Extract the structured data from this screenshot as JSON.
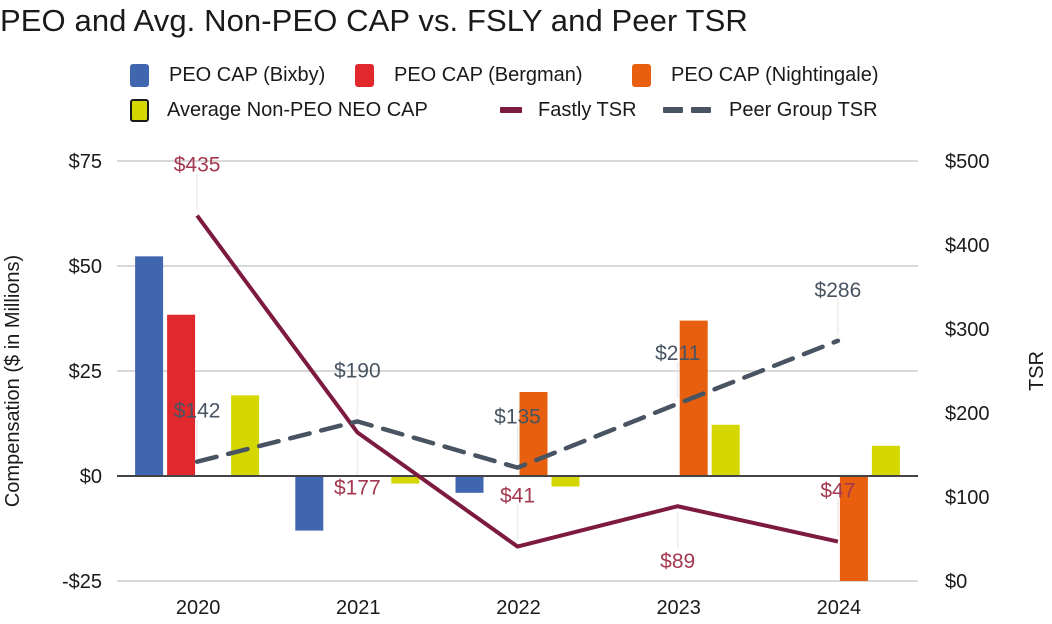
{
  "chart_data": {
    "type": "bar",
    "title": "PEO and Avg. Non-PEO CAP vs. FSLY and Peer TSR",
    "categories": [
      "2020",
      "2021",
      "2022",
      "2023",
      "2024"
    ],
    "ylabel": "Compensation ($ in Millions)",
    "y2label": "TSR",
    "ylim": [
      -25,
      75
    ],
    "y2lim": [
      0,
      500
    ],
    "yticks": [
      "$75",
      "$50",
      "$25",
      "$0",
      "-$25"
    ],
    "ytick_values": [
      75,
      50,
      25,
      0,
      -25
    ],
    "y2ticks": [
      "$500",
      "$400",
      "$300",
      "$200",
      "$100",
      "$0"
    ],
    "y2tick_values": [
      500,
      400,
      300,
      200,
      100,
      0
    ],
    "grid": true,
    "legend_position": "top",
    "bar_series": [
      {
        "name": "PEO CAP (Bixby)",
        "color": "#4166b0",
        "values": [
          52.3,
          -13.0,
          -4.0,
          null,
          null
        ]
      },
      {
        "name": "PEO CAP (Bergman)",
        "color": "#e1282d",
        "values": [
          38.4,
          null,
          null,
          null,
          null
        ]
      },
      {
        "name": "PEO CAP (Nightingale)",
        "color": "#e8600f",
        "values": [
          null,
          null,
          20.0,
          37.0,
          -25.0
        ]
      },
      {
        "name": "Average Non-PEO NEO CAP",
        "color": "#d5d800",
        "outlined_in_legend": true,
        "values": [
          19.2,
          -1.8,
          -2.5,
          12.2,
          7.2
        ]
      }
    ],
    "line_series": [
      {
        "name": "Fastly TSR",
        "color": "#7d1a40",
        "label_color": "#a3384f",
        "style": "solid",
        "axis": "right",
        "values": [
          435,
          177,
          41,
          89,
          47
        ],
        "labels": [
          "$435",
          "$177",
          "$41",
          "$89",
          "$47"
        ],
        "label_side": [
          "above",
          "below",
          "above",
          "below",
          "above"
        ]
      },
      {
        "name": "Peer Group TSR",
        "color": "#485461",
        "label_color": "#485461",
        "style": "dashed",
        "axis": "right",
        "values": [
          142,
          190,
          135,
          211,
          286
        ],
        "labels": [
          "$142",
          "$190",
          "$135",
          "$211",
          "$286"
        ],
        "label_side": [
          "above",
          "above",
          "above",
          "above",
          "above"
        ]
      }
    ]
  },
  "legend": {
    "items": [
      {
        "label": "PEO CAP (Bixby)",
        "kind": "box",
        "color": "#4166b0"
      },
      {
        "label": "PEO CAP (Bergman)",
        "kind": "box",
        "color": "#e1282d"
      },
      {
        "label": "PEO CAP (Nightingale)",
        "kind": "box",
        "color": "#e8600f"
      },
      {
        "label": "Average Non-PEO NEO CAP",
        "kind": "box-outlined",
        "color": "#d5d800"
      },
      {
        "label": "Fastly TSR",
        "kind": "line",
        "color": "#7d1a40"
      },
      {
        "label": "Peer Group TSR",
        "kind": "dash",
        "color": "#485461"
      }
    ]
  }
}
